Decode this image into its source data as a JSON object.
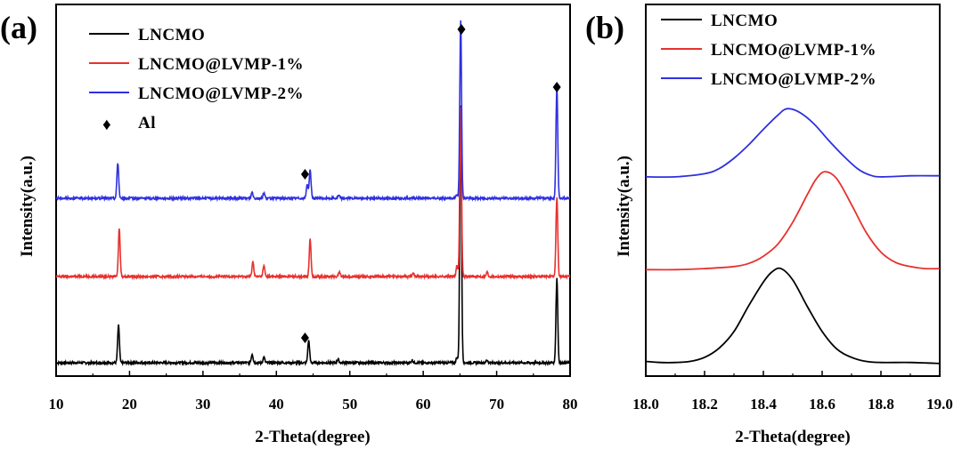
{
  "chart_data": [
    {
      "type": "line",
      "panel_label": "(a)",
      "xlabel": "2-Theta(degree)",
      "ylabel": "Intensity(a.u.)",
      "xlim": [
        10,
        80
      ],
      "x_ticks": [
        "10",
        "20",
        "30",
        "40",
        "50",
        "60",
        "70",
        "80"
      ],
      "y_ticks": [],
      "grid": false,
      "legend_position": "top-left",
      "marker_label": "Al",
      "marker_symbol": "♦",
      "al_marker_x": [
        17.0,
        43.9,
        65.2,
        78.2
      ],
      "series": [
        {
          "name": "LNCMO",
          "color": "#000000",
          "baseline": 0.0,
          "peaks": [
            {
              "x": 18.5,
              "h": 0.42
            },
            {
              "x": 36.7,
              "h": 0.1
            },
            {
              "x": 38.3,
              "h": 0.06
            },
            {
              "x": 44.4,
              "h": 0.25
            },
            {
              "x": 48.4,
              "h": 0.04
            },
            {
              "x": 58.5,
              "h": 0.03
            },
            {
              "x": 64.6,
              "h": 0.06
            },
            {
              "x": 65.1,
              "h": 2.9
            },
            {
              "x": 68.7,
              "h": 0.03
            },
            {
              "x": 78.2,
              "h": 0.95
            }
          ]
        },
        {
          "name": "LNCMO@LVMP-1%",
          "color": "#e8312e",
          "baseline": 1.0,
          "peaks": [
            {
              "x": 18.6,
              "h": 0.55
            },
            {
              "x": 36.8,
              "h": 0.17
            },
            {
              "x": 38.3,
              "h": 0.12
            },
            {
              "x": 44.6,
              "h": 0.42
            },
            {
              "x": 48.6,
              "h": 0.05
            },
            {
              "x": 58.6,
              "h": 0.05
            },
            {
              "x": 64.6,
              "h": 0.12
            },
            {
              "x": 65.1,
              "h": 1.9
            },
            {
              "x": 68.7,
              "h": 0.05
            },
            {
              "x": 78.2,
              "h": 0.9
            }
          ]
        },
        {
          "name": "LNCMO@LVMP-2%",
          "color": "#2f30e0",
          "baseline": 2.0,
          "peaks": [
            {
              "x": 18.4,
              "h": 0.4
            },
            {
              "x": 36.7,
              "h": 0.07
            },
            {
              "x": 38.3,
              "h": 0.06
            },
            {
              "x": 44.2,
              "h": 0.16
            },
            {
              "x": 44.6,
              "h": 0.32
            },
            {
              "x": 48.5,
              "h": 0.03
            },
            {
              "x": 64.6,
              "h": 0.04
            },
            {
              "x": 65.1,
              "h": 2.0
            },
            {
              "x": 78.2,
              "h": 1.25
            }
          ]
        }
      ]
    },
    {
      "type": "line",
      "panel_label": "(b)",
      "xlabel": "2-Theta(degree)",
      "ylabel": "Intensity(a.u.)",
      "xlim": [
        18.0,
        19.0
      ],
      "x_ticks": [
        "18.0",
        "18.2",
        "18.4",
        "18.6",
        "18.8",
        "19.0"
      ],
      "y_ticks": [],
      "grid": false,
      "legend_position": "top-left",
      "series": [
        {
          "name": "LNCMO",
          "color": "#000000",
          "points": [
            [
              18.0,
              0.03
            ],
            [
              18.05,
              0.02
            ],
            [
              18.1,
              0.02
            ],
            [
              18.15,
              0.03
            ],
            [
              18.2,
              0.07
            ],
            [
              18.25,
              0.16
            ],
            [
              18.3,
              0.32
            ],
            [
              18.35,
              0.57
            ],
            [
              18.4,
              0.8
            ],
            [
              18.43,
              0.9
            ],
            [
              18.46,
              0.93
            ],
            [
              18.5,
              0.82
            ],
            [
              18.55,
              0.56
            ],
            [
              18.6,
              0.32
            ],
            [
              18.65,
              0.15
            ],
            [
              18.7,
              0.07
            ],
            [
              18.75,
              0.03
            ],
            [
              18.8,
              0.02
            ],
            [
              18.9,
              0.02
            ],
            [
              19.0,
              0.01
            ]
          ]
        },
        {
          "name": "LNCMO@LVMP-1%",
          "color": "#e8312e",
          "points": [
            [
              18.0,
              0.92
            ],
            [
              18.1,
              0.92
            ],
            [
              18.2,
              0.93
            ],
            [
              18.3,
              0.95
            ],
            [
              18.35,
              0.98
            ],
            [
              18.4,
              1.05
            ],
            [
              18.45,
              1.17
            ],
            [
              18.5,
              1.38
            ],
            [
              18.55,
              1.65
            ],
            [
              18.58,
              1.8
            ],
            [
              18.61,
              1.87
            ],
            [
              18.65,
              1.8
            ],
            [
              18.7,
              1.55
            ],
            [
              18.75,
              1.28
            ],
            [
              18.8,
              1.09
            ],
            [
              18.85,
              0.99
            ],
            [
              18.9,
              0.95
            ],
            [
              18.95,
              0.93
            ],
            [
              19.0,
              0.93
            ]
          ]
        },
        {
          "name": "LNCMO@LVMP-2%",
          "color": "#2f30e0",
          "points": [
            [
              18.0,
              1.82
            ],
            [
              18.1,
              1.82
            ],
            [
              18.2,
              1.85
            ],
            [
              18.25,
              1.9
            ],
            [
              18.3,
              2.0
            ],
            [
              18.35,
              2.13
            ],
            [
              18.4,
              2.28
            ],
            [
              18.45,
              2.42
            ],
            [
              18.48,
              2.48
            ],
            [
              18.52,
              2.45
            ],
            [
              18.57,
              2.34
            ],
            [
              18.62,
              2.18
            ],
            [
              18.67,
              2.03
            ],
            [
              18.72,
              1.9
            ],
            [
              18.76,
              1.84
            ],
            [
              18.8,
              1.82
            ],
            [
              18.9,
              1.83
            ],
            [
              19.0,
              1.83
            ]
          ]
        }
      ]
    }
  ]
}
